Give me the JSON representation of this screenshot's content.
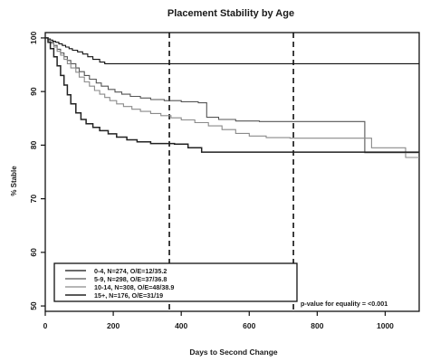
{
  "chart_data": {
    "type": "line",
    "step": true,
    "title": "Placement Stability by Age",
    "xlabel": "Days to Second Change",
    "ylabel": "% Stable",
    "xlim": [
      0,
      1100
    ],
    "ylim": [
      49,
      101
    ],
    "x_ticks": [
      0,
      200,
      400,
      600,
      800,
      1000
    ],
    "y_ticks": [
      50,
      60,
      70,
      80,
      90,
      100
    ],
    "grid": false,
    "vlines": [
      365,
      730
    ],
    "legend_position": "bottom-left",
    "annotation": "p-value for equality = <0.001",
    "colors": {
      "series": [
        "#111111",
        "#555555",
        "#8a8a8a",
        "#222222"
      ],
      "reference": "#111111"
    },
    "series": [
      {
        "name": "0-4, N=274, O/E=12/35.2",
        "points": [
          [
            0,
            100
          ],
          [
            8,
            99.8
          ],
          [
            15,
            99.6
          ],
          [
            22,
            99.4
          ],
          [
            30,
            99.2
          ],
          [
            40,
            98.9
          ],
          [
            50,
            98.6
          ],
          [
            60,
            98.3
          ],
          [
            70,
            98
          ],
          [
            80,
            97.7
          ],
          [
            95,
            97.4
          ],
          [
            110,
            97
          ],
          [
            125,
            96.5
          ],
          [
            140,
            96
          ],
          [
            160,
            95.5
          ],
          [
            175,
            95.2
          ],
          [
            1100,
            95.2
          ]
        ]
      },
      {
        "name": "5-9, N=298, O/E=37/36.8",
        "points": [
          [
            0,
            100
          ],
          [
            8,
            99.6
          ],
          [
            15,
            99.2
          ],
          [
            25,
            98.6
          ],
          [
            35,
            97.9
          ],
          [
            45,
            97.2
          ],
          [
            55,
            96.5
          ],
          [
            65,
            95.8
          ],
          [
            75,
            95.2
          ],
          [
            90,
            94.4
          ],
          [
            100,
            93.7
          ],
          [
            115,
            93
          ],
          [
            130,
            92.3
          ],
          [
            150,
            91.6
          ],
          [
            165,
            91
          ],
          [
            185,
            90.4
          ],
          [
            205,
            89.9
          ],
          [
            225,
            89.5
          ],
          [
            250,
            89.1
          ],
          [
            280,
            88.8
          ],
          [
            310,
            88.5
          ],
          [
            350,
            88.3
          ],
          [
            400,
            88.1
          ],
          [
            450,
            87.9
          ],
          [
            475,
            85.2
          ],
          [
            510,
            84.8
          ],
          [
            560,
            84.5
          ],
          [
            630,
            84.4
          ],
          [
            700,
            84.4
          ],
          [
            760,
            84.4
          ],
          [
            850,
            84.4
          ],
          [
            925,
            84.4
          ],
          [
            940,
            78.6
          ],
          [
            1100,
            78.6
          ]
        ]
      },
      {
        "name": "10-14, N=308, O/E=48/38.9",
        "points": [
          [
            0,
            100
          ],
          [
            8,
            99.5
          ],
          [
            15,
            99
          ],
          [
            25,
            98.3
          ],
          [
            35,
            97.5
          ],
          [
            45,
            96.8
          ],
          [
            55,
            96
          ],
          [
            65,
            95.2
          ],
          [
            75,
            94.4
          ],
          [
            90,
            93.6
          ],
          [
            100,
            92.7
          ],
          [
            115,
            91.8
          ],
          [
            130,
            91
          ],
          [
            145,
            90.2
          ],
          [
            160,
            89.5
          ],
          [
            175,
            88.9
          ],
          [
            190,
            88.3
          ],
          [
            210,
            87.7
          ],
          [
            230,
            87.2
          ],
          [
            255,
            86.7
          ],
          [
            280,
            86.3
          ],
          [
            310,
            85.9
          ],
          [
            340,
            85.5
          ],
          [
            370,
            85.1
          ],
          [
            400,
            84.7
          ],
          [
            440,
            84.2
          ],
          [
            480,
            83.6
          ],
          [
            520,
            82.9
          ],
          [
            560,
            82.2
          ],
          [
            600,
            81.7
          ],
          [
            650,
            81.4
          ],
          [
            720,
            81.3
          ],
          [
            800,
            81.3
          ],
          [
            950,
            81.3
          ],
          [
            960,
            79.5
          ],
          [
            1050,
            79.5
          ],
          [
            1060,
            77.7
          ],
          [
            1100,
            77.7
          ]
        ]
      },
      {
        "name": "15+, N=176, O/E=31/19",
        "points": [
          [
            0,
            100
          ],
          [
            8,
            99.2
          ],
          [
            15,
            98
          ],
          [
            25,
            96.5
          ],
          [
            35,
            94.8
          ],
          [
            45,
            93
          ],
          [
            55,
            91.2
          ],
          [
            65,
            89.4
          ],
          [
            75,
            87.7
          ],
          [
            90,
            86
          ],
          [
            105,
            84.8
          ],
          [
            120,
            84
          ],
          [
            140,
            83.3
          ],
          [
            160,
            82.7
          ],
          [
            185,
            82.1
          ],
          [
            210,
            81.5
          ],
          [
            240,
            81
          ],
          [
            270,
            80.6
          ],
          [
            310,
            80.3
          ],
          [
            380,
            80.2
          ],
          [
            420,
            79.5
          ],
          [
            460,
            78.7
          ],
          [
            550,
            78.7
          ],
          [
            700,
            78.7
          ],
          [
            850,
            78.7
          ],
          [
            1000,
            78.7
          ],
          [
            1100,
            78.7
          ]
        ]
      }
    ]
  }
}
